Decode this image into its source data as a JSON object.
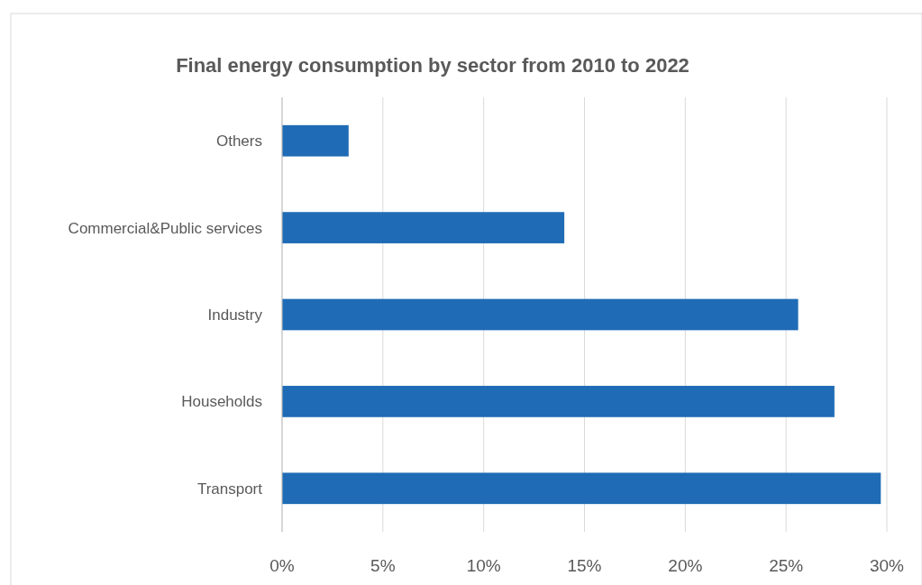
{
  "chart_data": {
    "type": "bar",
    "orientation": "horizontal",
    "title": "Final energy consumption by sector from 2010 to 2022",
    "categories": [
      "Others",
      "Commercial&Public services",
      "Industry",
      "Households",
      "Transport"
    ],
    "values": [
      3.3,
      14.0,
      25.6,
      27.4,
      29.7
    ],
    "color": "#1f6bb5",
    "xlim": [
      0,
      30
    ],
    "xticks": [
      {
        "value": 0,
        "label": "0%"
      },
      {
        "value": 5,
        "label": "5%"
      },
      {
        "value": 10,
        "label": "10%"
      },
      {
        "value": 15,
        "label": "15%"
      },
      {
        "value": 20,
        "label": "20%"
      },
      {
        "value": 25,
        "label": "25%"
      },
      {
        "value": 30,
        "label": "30%"
      }
    ],
    "grid": "x"
  }
}
